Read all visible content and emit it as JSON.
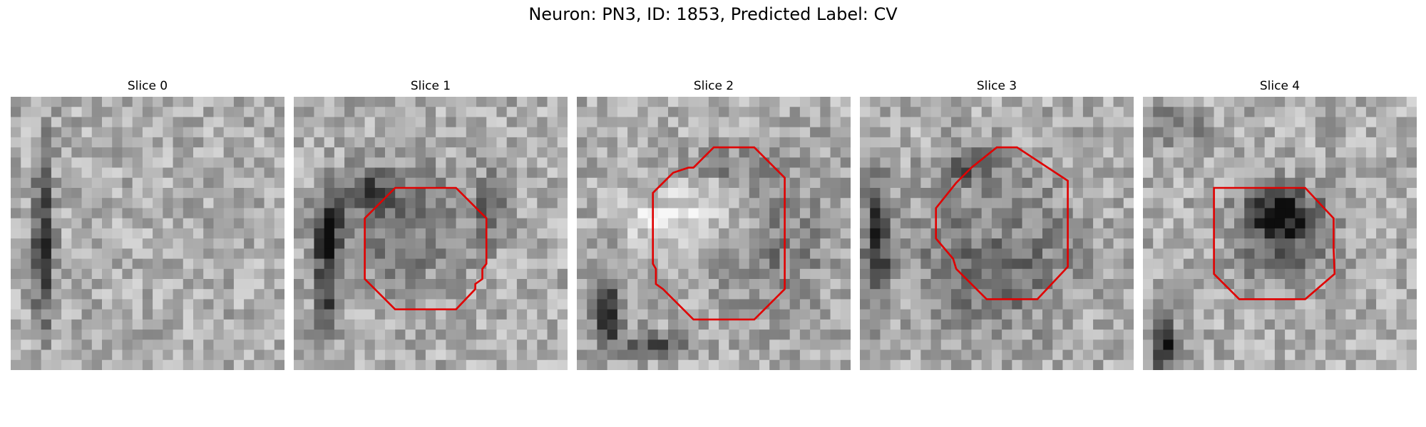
{
  "figure": {
    "title": "Neuron: PN3, ID: 1853, Predicted Label: CV"
  },
  "colors": {
    "background": "#ffffff",
    "contour": "#e00000",
    "colormap": "gray"
  },
  "panels": [
    {
      "title": "Slice 0",
      "has_contour": false
    },
    {
      "title": "Slice 1",
      "has_contour": true
    },
    {
      "title": "Slice 2",
      "has_contour": true
    },
    {
      "title": "Slice 3",
      "has_contour": true
    },
    {
      "title": "Slice 4",
      "has_contour": true
    }
  ]
}
